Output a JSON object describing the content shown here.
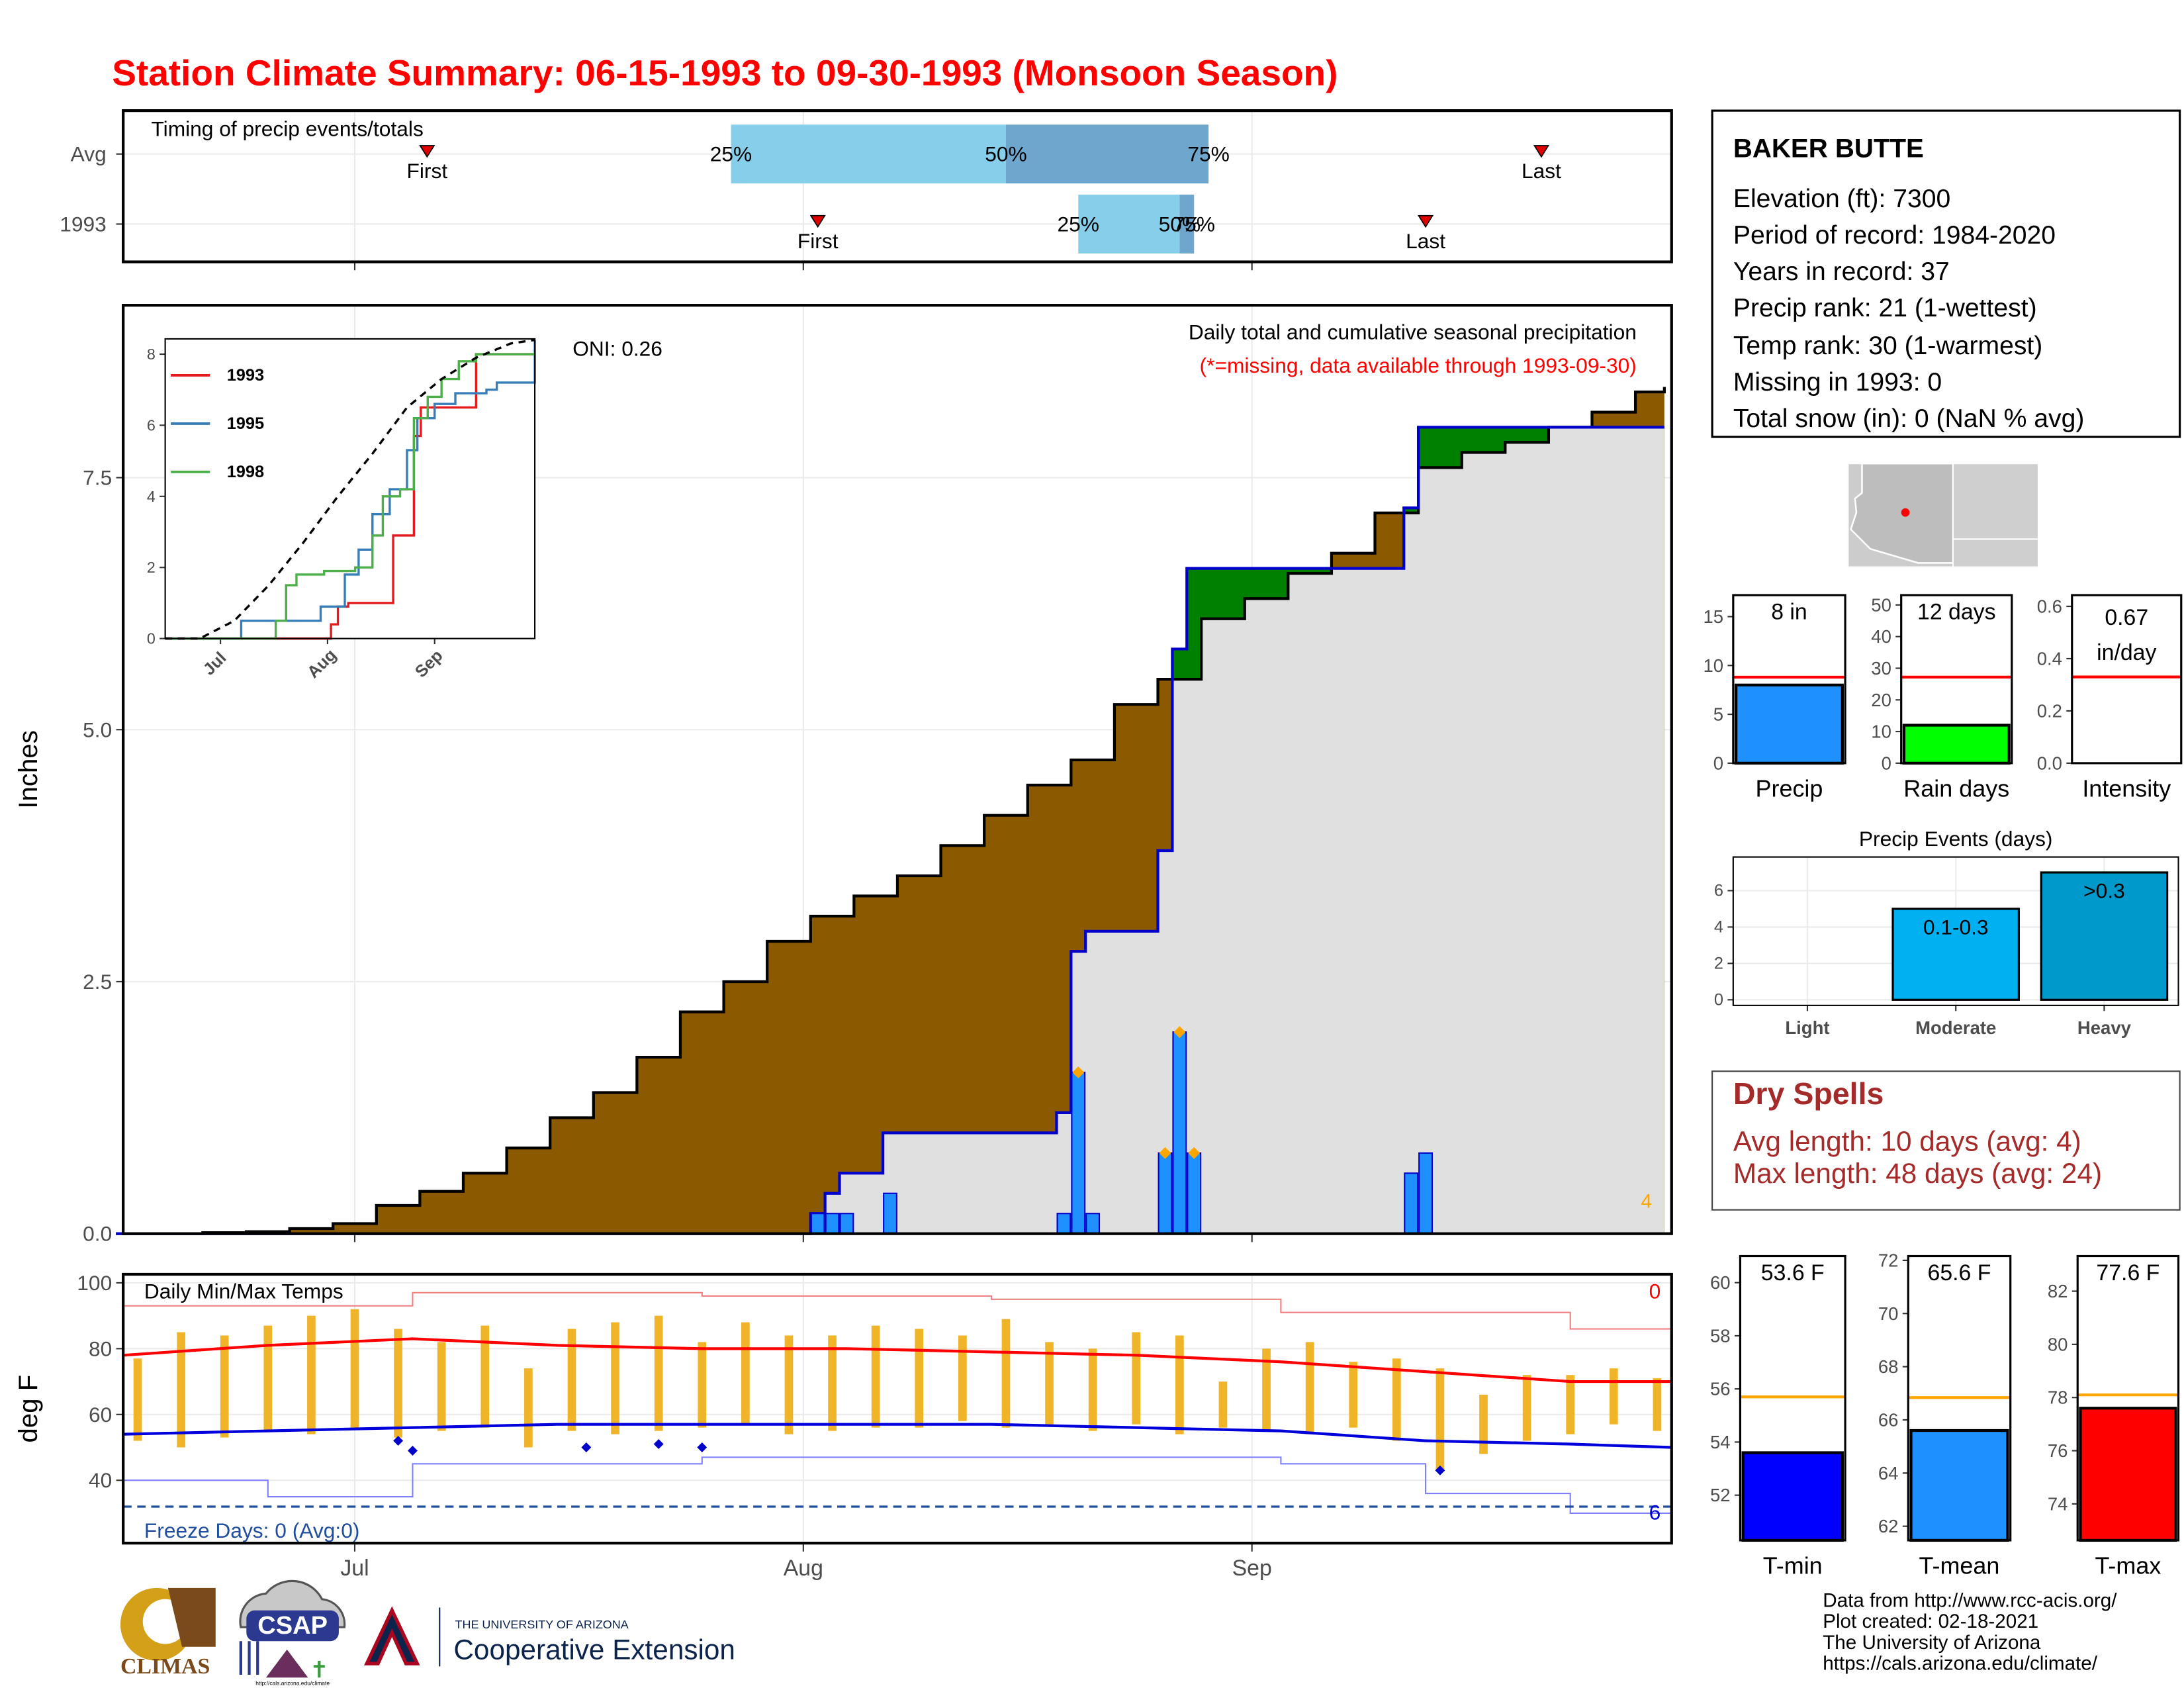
{
  "title": "Station Climate Summary: 06-15-1993 to 09-30-1993 (Monsoon Season)",
  "station": {
    "name": "BAKER BUTTE",
    "lines": [
      "Elevation (ft): 7300",
      "Period of record: 1984-2020",
      "Years in record: 37",
      "Precip rank: 21 (1-wettest)",
      "Temp rank: 30 (1-warmest)",
      "Missing in 1993: 0",
      "Total snow (in): 0 (NaN % avg)"
    ]
  },
  "dry_spells": {
    "title": "Dry Spells",
    "lines": [
      "Avg length: 10 days (avg: 4)",
      "Max length: 48 days (avg: 24)"
    ]
  },
  "footer": {
    "logos": [
      "CLIMAS",
      "CSAP",
      "http://cals.arizona.edu/climate",
      "THE UNIVERSITY OF ARIZONA",
      "Cooperative Extension"
    ],
    "credits": [
      "Data from http://www.rcc-acis.org/",
      "Plot created: 02-18-2021",
      "The University of Arizona",
      "https://cals.arizona.edu/climate/"
    ]
  },
  "chart_data": [
    {
      "type": "timing",
      "title": "Timing of precip events/totals",
      "categories": [
        "Avg",
        "1993"
      ],
      "first": [
        21,
        48
      ],
      "q25": [
        42,
        66
      ],
      "q50": [
        61,
        73
      ],
      "q75": [
        75,
        74
      ],
      "last": [
        98,
        90
      ],
      "marker_labels": [
        "First",
        "Last"
      ],
      "quartile_labels": [
        "25%",
        "50%",
        "75%"
      ],
      "colors": [
        "#87ceeb",
        "#6fa6cd"
      ],
      "marker_color": "#e00000",
      "xlim": [
        0,
        107
      ],
      "xticks": [
        16,
        47,
        78
      ],
      "grid": true
    },
    {
      "type": "cumulative_precip",
      "title": "Daily total and cumulative seasonal precipitation",
      "subtitle": "(*=missing, data available through 1993-09-30)",
      "annotation": "ONI: 0.26",
      "corner_label": "4",
      "ylabel": "Inches",
      "xlim": [
        0,
        107
      ],
      "xticks": [
        16,
        47,
        78
      ],
      "ylim": [
        0,
        9.21
      ],
      "yticks": [
        {
          "value": 0,
          "label": "0.0"
        },
        {
          "value": 2.5,
          "label": "2.5"
        },
        {
          "value": 5,
          "label": "5.0"
        },
        {
          "value": 7.5,
          "label": "7.5"
        }
      ],
      "grid": true,
      "avg_cumulative": {
        "color": "#000000",
        "x": [
          0,
          3,
          6,
          9,
          12,
          15,
          18,
          21,
          24,
          27,
          30,
          33,
          36,
          39,
          42,
          45,
          48,
          51,
          54,
          57,
          60,
          63,
          66,
          69,
          72,
          75,
          78,
          81,
          84,
          87,
          90,
          93,
          96,
          99,
          102,
          105,
          107
        ],
        "values": [
          0,
          0,
          0.01,
          0.02,
          0.05,
          0.1,
          0.28,
          0.42,
          0.6,
          0.85,
          1.15,
          1.4,
          1.75,
          2.2,
          2.5,
          2.9,
          3.15,
          3.35,
          3.55,
          3.85,
          4.15,
          4.45,
          4.7,
          5.25,
          5.5,
          6.1,
          6.3,
          6.55,
          6.75,
          7.15,
          7.6,
          7.75,
          7.85,
          8.0,
          8.15,
          8.35,
          8.4
        ]
      },
      "cumulative": {
        "color": "#0000cc",
        "x": [
          0,
          48,
          49,
          50,
          53,
          65,
          66,
          67,
          72,
          73,
          74,
          89,
          90,
          107
        ],
        "values": [
          0,
          0.2,
          0.4,
          0.6,
          1.0,
          1.2,
          2.8,
          3.0,
          3.8,
          5.8,
          6.6,
          7.2,
          8.0,
          8.0
        ]
      },
      "daily": {
        "color": "#1e90ff",
        "flag_color": "#ffa500",
        "x": [
          48,
          49,
          50,
          53,
          65,
          66,
          67,
          72,
          73,
          74,
          89,
          90
        ],
        "values": [
          0.2,
          0.2,
          0.2,
          0.4,
          0.2,
          1.6,
          0.2,
          0.8,
          2.0,
          0.8,
          0.6,
          0.8
        ],
        "flags": [
          false,
          false,
          false,
          false,
          false,
          true,
          false,
          true,
          true,
          true,
          false,
          false
        ]
      },
      "deficit_color": "#8b5a00",
      "surplus_color": "#008000",
      "base_color": "#e0e0e0",
      "corner_color": "#ffa500",
      "subtitle_color": "#ff0000"
    },
    {
      "type": "inset_cumulative",
      "xlim": [
        0,
        107
      ],
      "ylim": [
        0,
        8.43
      ],
      "yticks": [
        0,
        2,
        4,
        6,
        8
      ],
      "xticks": [
        {
          "value": 16,
          "label": "Jul"
        },
        {
          "value": 47,
          "label": "Aug"
        },
        {
          "value": 78,
          "label": "Sep"
        }
      ],
      "series": [
        {
          "name": "1993",
          "color": "#e41a1c",
          "x": [
            0,
            46,
            48,
            50,
            53,
            64,
            66,
            72,
            74,
            88,
            90,
            107
          ],
          "values": [
            0,
            0,
            0.4,
            0.9,
            1.0,
            1.0,
            2.9,
            5.7,
            6.5,
            6.5,
            8.0,
            8.0
          ]
        },
        {
          "name": "1995",
          "color": "#377eb8",
          "x": [
            0,
            20,
            22,
            45,
            52,
            56,
            60,
            65,
            70,
            73,
            78,
            84,
            93,
            96,
            104,
            107
          ],
          "values": [
            0,
            0,
            0.5,
            0.9,
            1.8,
            2.5,
            3.5,
            4.2,
            5.3,
            6.2,
            6.6,
            6.9,
            7.0,
            7.2,
            7.2,
            8.4
          ]
        },
        {
          "name": "1998",
          "color": "#4daf4a",
          "x": [
            0,
            30,
            32,
            35,
            38,
            46,
            55,
            60,
            63,
            68,
            72,
            76,
            80,
            85,
            90,
            107
          ],
          "values": [
            0,
            0,
            0.5,
            1.5,
            1.8,
            1.9,
            2.0,
            2.9,
            4.0,
            4.2,
            6.2,
            6.8,
            7.3,
            7.8,
            8.0,
            8.0
          ]
        }
      ],
      "average": {
        "color": "#000000",
        "x": [
          0,
          10,
          20,
          30,
          40,
          50,
          60,
          70,
          80,
          90,
          100,
          107
        ],
        "values": [
          0,
          0,
          0.5,
          1.5,
          2.7,
          4.0,
          5.2,
          6.5,
          7.3,
          7.9,
          8.3,
          8.4
        ]
      }
    },
    {
      "type": "temperature",
      "title": "Daily Min/Max Temps",
      "ylabel": "deg F",
      "freeze_label": "Freeze Days: 0 (Avg:0)",
      "record_high_count": 0,
      "record_low_count": 6,
      "xlim": [
        0,
        107
      ],
      "xticks": [
        {
          "value": 16,
          "label": "Jul"
        },
        {
          "value": 47,
          "label": "Aug"
        },
        {
          "value": 78,
          "label": "Sep"
        }
      ],
      "ylim": [
        20.9,
        102.6
      ],
      "yticks": [
        40,
        60,
        80,
        100
      ],
      "grid": true,
      "bars": {
        "color": "#f0b429",
        "x": [
          1,
          4,
          7,
          10,
          13,
          16,
          19,
          22,
          25,
          28,
          31,
          34,
          37,
          40,
          43,
          46,
          49,
          52,
          55,
          58,
          61,
          64,
          67,
          70,
          73,
          76,
          79,
          82,
          85,
          88,
          91,
          94,
          97,
          100,
          103,
          106
        ],
        "low": [
          52,
          50,
          53,
          55,
          54,
          56,
          53,
          55,
          56,
          50,
          55,
          54,
          55,
          56,
          57,
          54,
          55,
          56,
          56,
          58,
          56,
          57,
          55,
          57,
          54,
          56,
          55,
          54,
          56,
          52,
          43,
          48,
          52,
          54,
          57,
          55
        ],
        "high": [
          77,
          85,
          84,
          87,
          90,
          92,
          86,
          82,
          87,
          74,
          86,
          88,
          90,
          82,
          88,
          84,
          84,
          87,
          86,
          84,
          89,
          82,
          80,
          85,
          84,
          70,
          80,
          82,
          76,
          77,
          74,
          66,
          72,
          72,
          74,
          71
        ]
      },
      "avg_max": {
        "color": "#ff0000",
        "x": [
          0,
          10,
          20,
          30,
          40,
          50,
          60,
          70,
          80,
          90,
          100,
          107
        ],
        "values": [
          78,
          81,
          83,
          81,
          80,
          80,
          79,
          78,
          76,
          73,
          70,
          70
        ]
      },
      "avg_min": {
        "color": "#0000dd",
        "x": [
          0,
          10,
          20,
          30,
          40,
          50,
          60,
          70,
          80,
          90,
          100,
          107
        ],
        "values": [
          54,
          55,
          56,
          57,
          57,
          57,
          57,
          56,
          55,
          52,
          51,
          50
        ]
      },
      "record_max": {
        "color": "#f08080",
        "x": [
          0,
          20,
          40,
          60,
          80,
          100,
          107
        ],
        "values": [
          93,
          97,
          96,
          95,
          91,
          86,
          82
        ]
      },
      "record_min": {
        "color": "#8080ff",
        "x": [
          0,
          10,
          20,
          40,
          60,
          80,
          90,
          100,
          107
        ],
        "values": [
          40,
          35,
          45,
          47,
          47,
          45,
          36,
          30,
          28
        ]
      },
      "low_markers": {
        "color": "#0000cc",
        "x": [
          19,
          20,
          32,
          37,
          40,
          91
        ],
        "values": [
          52,
          49,
          50,
          51,
          50,
          43
        ]
      },
      "freeze": {
        "value": 32,
        "color": "#1f4e9e"
      }
    },
    {
      "type": "summary_bar",
      "label": "Precip",
      "value": 8,
      "value_label": "8 in",
      "average": 8.8,
      "ylim": [
        0,
        17.2
      ],
      "yticks": [
        0,
        5,
        10,
        15
      ],
      "color": "#1e90ff",
      "avg_color": "#ff0000"
    },
    {
      "type": "summary_bar",
      "label": "Rain days",
      "value": 12,
      "value_label": "12 days",
      "average": 27.2,
      "ylim": [
        0,
        53.1
      ],
      "yticks": [
        0,
        10,
        20,
        30,
        40,
        50
      ],
      "color": "#00ff00",
      "avg_color": "#ff0000"
    },
    {
      "type": "summary_bar",
      "label": "Intensity",
      "value": 0.67,
      "value_label": "0.67",
      "unit": "in/day",
      "average": 0.33,
      "ylim": [
        0,
        0.643
      ],
      "yticks": [
        {
          "value": 0,
          "label": "0.0"
        },
        {
          "value": 0.2,
          "label": "0.2"
        },
        {
          "value": 0.4,
          "label": "0.4"
        },
        {
          "value": 0.6,
          "label": "0.6"
        }
      ],
      "color": "#1e90ff",
      "avg_color": "#ff0000"
    },
    {
      "type": "events_bar",
      "title": "Precip Events (days)",
      "categories": [
        "Light",
        "Moderate",
        "Heavy"
      ],
      "values": [
        0,
        5,
        7
      ],
      "ranges": [
        null,
        "0.1-0.3",
        ">0.3"
      ],
      "colors": [
        "#87ceeb",
        "#00b0f0",
        "#0099cc"
      ],
      "ylim": [
        -0.31,
        7.85
      ],
      "yticks": [
        0,
        2,
        4,
        6
      ],
      "grid": true
    },
    {
      "type": "summary_bar",
      "label": "T-min",
      "value": 53.6,
      "value_label": "53.6 F",
      "average": 55.7,
      "ylim": [
        50.3,
        61.0
      ],
      "yticks": [
        52,
        54,
        56,
        58,
        60
      ],
      "color": "#0000ff",
      "avg_color": "#ffa500"
    },
    {
      "type": "summary_bar",
      "label": "T-mean",
      "value": 65.6,
      "value_label": "65.6 F",
      "average": 66.84,
      "ylim": [
        61.47,
        72.16
      ],
      "yticks": [
        62,
        64,
        66,
        68,
        70,
        72
      ],
      "color": "#1e90ff",
      "avg_color": "#ffa500"
    },
    {
      "type": "summary_bar",
      "label": "T-max",
      "value": 77.6,
      "value_label": "77.6 F",
      "average": 78.1,
      "ylim": [
        72.63,
        83.32
      ],
      "yticks": [
        74,
        76,
        78,
        80,
        82
      ],
      "color": "#ff0000",
      "avg_color": "#ffa500"
    }
  ]
}
